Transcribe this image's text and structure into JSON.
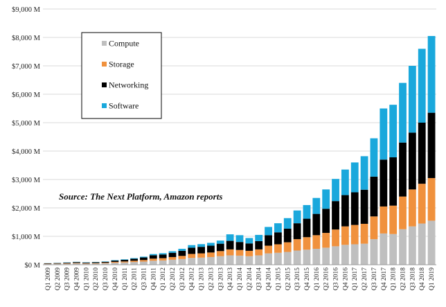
{
  "chart_data": {
    "type": "bar",
    "stacked": true,
    "annotation": "Source: The Next Platform, Amazon reports",
    "ylim": [
      0,
      9000
    ],
    "y_ticks": [
      {
        "value": 0,
        "label": "$0 M"
      },
      {
        "value": 1000,
        "label": "$1,000 M"
      },
      {
        "value": 2000,
        "label": "$2,000 M"
      },
      {
        "value": 3000,
        "label": "$3,000 M"
      },
      {
        "value": 4000,
        "label": "$4,000 M"
      },
      {
        "value": 5000,
        "label": "$5,000 M"
      },
      {
        "value": 6000,
        "label": "$6,000 M"
      },
      {
        "value": 7000,
        "label": "$7,000 M"
      },
      {
        "value": 8000,
        "label": "$8,000 M"
      },
      {
        "value": 9000,
        "label": "$9,000 M"
      }
    ],
    "grid": true,
    "legend_position": "top-left",
    "categories": [
      "Q1 2009",
      "Q2 2009",
      "Q3 2009",
      "Q4 2009",
      "Q1 2010",
      "Q2 2010",
      "Q3 2010",
      "Q4 2010",
      "Q1 2011",
      "Q2 2011",
      "Q3 2011",
      "Q4 2011",
      "Q1 2012",
      "Q2 2012",
      "Q3 2012",
      "Q4 2012",
      "Q1 2013",
      "Q2 2013",
      "Q3 2013",
      "Q4 2013",
      "Q1 2014",
      "Q2 2014",
      "Q3 2014",
      "Q4 2014",
      "Q1 2015",
      "Q2 2015",
      "Q3 2015",
      "Q4 2015",
      "Q1 2016",
      "Q2 2016",
      "Q3 2016",
      "Q4 2016",
      "Q1 2017",
      "Q2 2017",
      "Q3 2017",
      "Q4 2017",
      "Q1 2018",
      "Q2 2018",
      "Q3 2018",
      "Q4 2018",
      "Q1 2019"
    ],
    "series": [
      {
        "name": "Compute",
        "color": "#bfbfbf",
        "values": [
          25,
          28,
          35,
          45,
          38,
          42,
          50,
          70,
          80,
          95,
          110,
          140,
          150,
          175,
          200,
          240,
          250,
          270,
          300,
          330,
          320,
          300,
          330,
          400,
          420,
          450,
          500,
          530,
          560,
          600,
          650,
          700,
          720,
          740,
          900,
          1100,
          1080,
          1250,
          1350,
          1450,
          1550
        ]
      },
      {
        "name": "Storage",
        "color": "#f0913d",
        "values": [
          10,
          12,
          14,
          18,
          15,
          17,
          20,
          30,
          35,
          45,
          55,
          75,
          80,
          95,
          110,
          140,
          150,
          160,
          180,
          210,
          200,
          190,
          210,
          270,
          300,
          340,
          400,
          440,
          480,
          520,
          590,
          650,
          680,
          700,
          800,
          950,
          1000,
          1150,
          1300,
          1400,
          1500
        ]
      },
      {
        "name": "Networking",
        "color": "#000000",
        "values": [
          15,
          18,
          22,
          28,
          25,
          28,
          32,
          45,
          55,
          70,
          90,
          120,
          130,
          150,
          180,
          220,
          230,
          240,
          260,
          300,
          280,
          260,
          290,
          370,
          420,
          480,
          560,
          650,
          750,
          850,
          1000,
          1100,
          1150,
          1200,
          1400,
          1650,
          1700,
          1900,
          2000,
          2150,
          2300
        ]
      },
      {
        "name": "Software",
        "color": "#1aa8dc",
        "values": [
          5,
          6,
          8,
          10,
          8,
          10,
          12,
          15,
          18,
          22,
          28,
          40,
          45,
          55,
          70,
          90,
          95,
          100,
          110,
          230,
          240,
          190,
          220,
          290,
          320,
          370,
          450,
          480,
          560,
          680,
          780,
          900,
          1050,
          1180,
          1350,
          1800,
          1850,
          2100,
          2350,
          2600,
          2700
        ]
      }
    ]
  }
}
